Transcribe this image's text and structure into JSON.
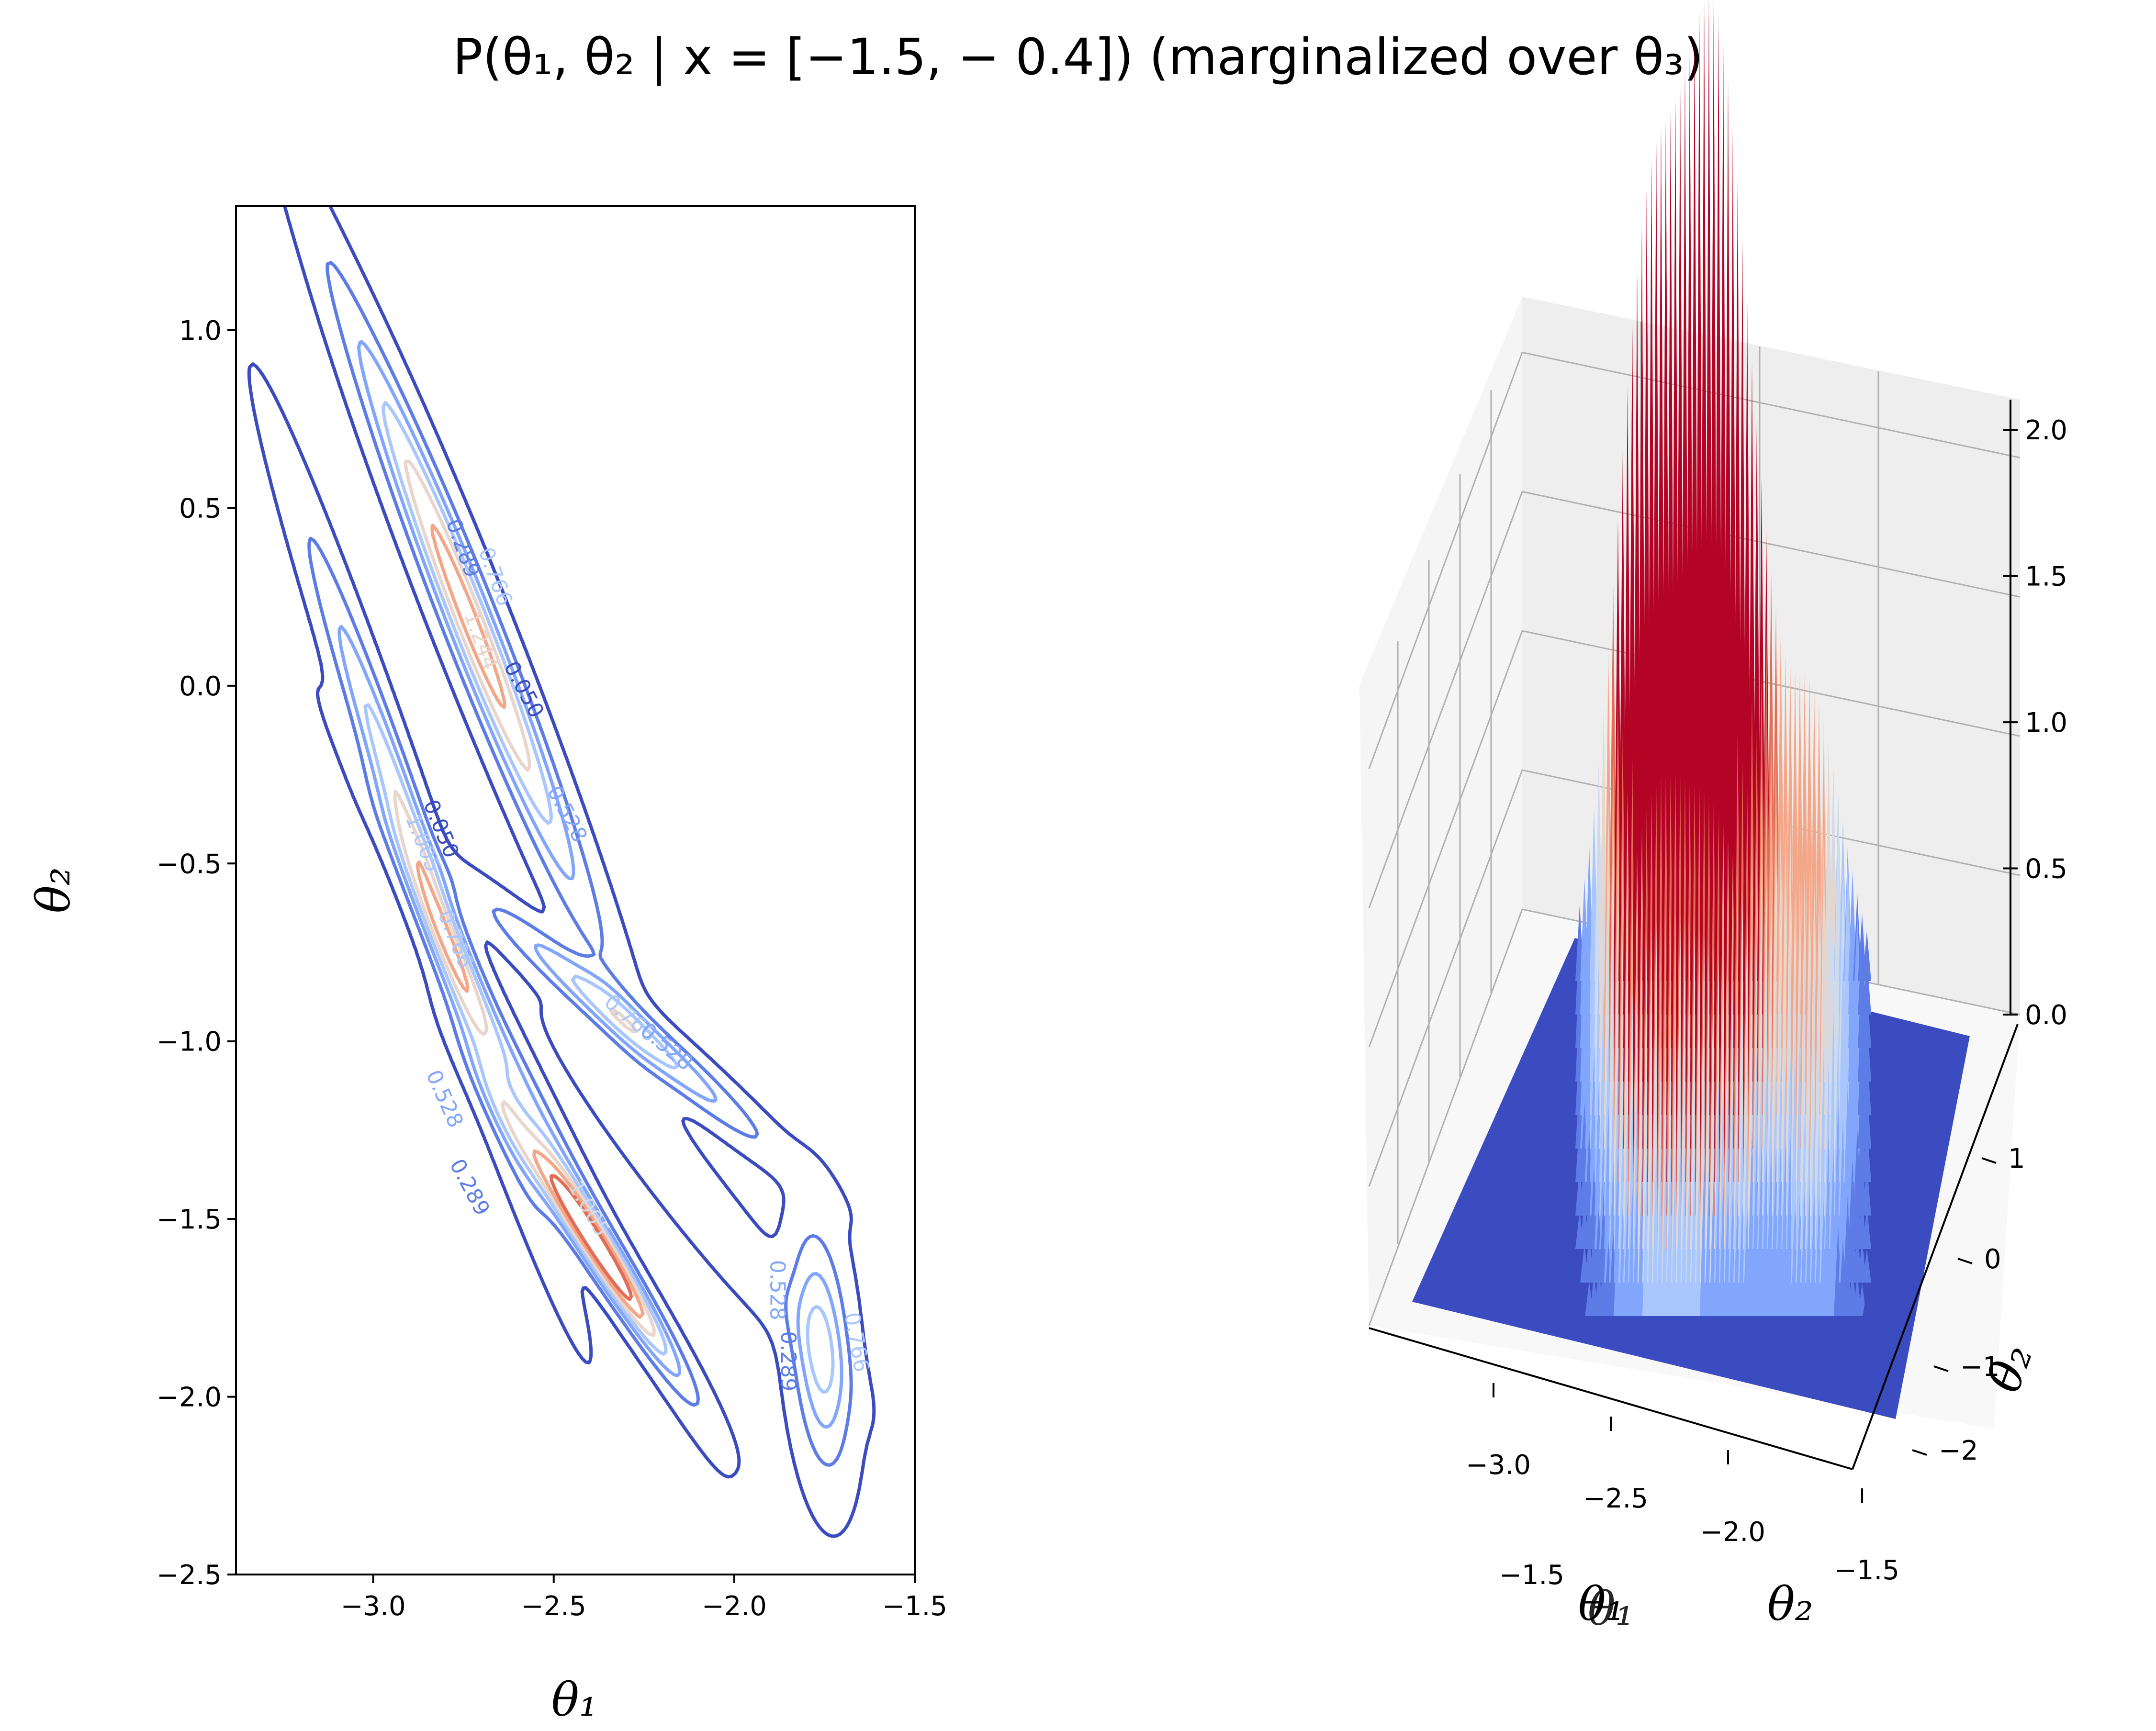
{
  "title": "P(θ₁, θ₂ | x = [−1.5, − 0.4]) (marginalized over θ₃)",
  "colors": {
    "c1": "#3b4cc0",
    "c2": "#5d7ce6",
    "c3": "#82a6fb",
    "c4": "#aac7fd",
    "c5": "#cfdaea",
    "c6": "#e8d6cc",
    "c7": "#f4a688",
    "c8": "#e36c55",
    "c9": "#b40426",
    "pane": "#f2f2f2",
    "grid": "#b0b0b0"
  },
  "chart_data": [
    {
      "type": "contour",
      "xlabel": "θ₁",
      "ylabel": "θ₂",
      "xlim": [
        -3.38,
        -1.5
      ],
      "ylim": [
        -2.5,
        1.35
      ],
      "xticks": [
        "−3.0",
        "−2.5",
        "−2.0",
        "−1.5"
      ],
      "xtick_values": [
        -3.0,
        -2.5,
        -2.0,
        -1.5
      ],
      "yticks": [
        "−2.5",
        "−2.0",
        "−1.5",
        "−1.0",
        "−0.5",
        "0.0",
        "0.5",
        "1.0"
      ],
      "ytick_values": [
        -2.5,
        -2.0,
        -1.5,
        -1.0,
        -0.5,
        0.0,
        0.5,
        1.0
      ],
      "contour_levels": [
        "0.050",
        "0.289",
        "0.528",
        "0.766",
        "1.005",
        "1.244"
      ],
      "contour_label_items": [
        {
          "text": "0.050",
          "x": -2.6,
          "y": -0.02,
          "color": "c1",
          "rot": 62
        },
        {
          "text": "0.528",
          "x": -2.48,
          "y": -0.37,
          "color": "c3",
          "rot": 62
        },
        {
          "text": "0.050",
          "x": -2.83,
          "y": -0.41,
          "color": "c1",
          "rot": 68
        },
        {
          "text": "0.766",
          "x": -2.79,
          "y": -0.72,
          "color": "c4",
          "rot": 68
        },
        {
          "text": "1.005",
          "x": -2.88,
          "y": -0.45,
          "color": "c4",
          "rot": 68
        },
        {
          "text": "0.289",
          "x": -2.77,
          "y": 0.38,
          "color": "c2",
          "rot": 70
        },
        {
          "text": "1.244",
          "x": -2.72,
          "y": 0.12,
          "color": "c6",
          "rot": 70
        },
        {
          "text": "0.766",
          "x": -2.68,
          "y": 0.3,
          "color": "c4",
          "rot": 70
        },
        {
          "text": "0.528",
          "x": -2.82,
          "y": -1.17,
          "color": "c3",
          "rot": 66
        },
        {
          "text": "0.289",
          "x": -2.75,
          "y": -1.42,
          "color": "c2",
          "rot": 62
        },
        {
          "text": "0.766",
          "x": -2.3,
          "y": -0.95,
          "color": "c4",
          "rot": 40
        },
        {
          "text": "0.528",
          "x": -2.2,
          "y": -1.03,
          "color": "c3",
          "rot": 40
        },
        {
          "text": "1.005",
          "x": -2.42,
          "y": -1.48,
          "color": "c5",
          "rot": 60
        },
        {
          "text": "0.528",
          "x": -1.9,
          "y": -1.7,
          "color": "c3",
          "rot": 90
        },
        {
          "text": "0.289",
          "x": -1.87,
          "y": -1.9,
          "color": "c2",
          "rot": 90
        },
        {
          "text": "0.766",
          "x": -1.68,
          "y": -1.85,
          "color": "c4",
          "rot": 80
        }
      ]
    },
    {
      "type": "surface3d",
      "xlabel": "θ₁",
      "ylabel": "θ₂",
      "x_axis_overlap_label": "−1.5",
      "xticks": [
        "−3.0",
        "−2.5",
        "−2.0",
        "−1.5"
      ],
      "xtick_values": [
        -3.0,
        -2.5,
        -2.0,
        -1.5
      ],
      "yticks": [
        "−2",
        "−1",
        "0",
        "1"
      ],
      "ytick_values": [
        -2,
        -1,
        0,
        1
      ],
      "zticks": [
        "0.0",
        "0.5",
        "1.0",
        "1.5",
        "2.0"
      ],
      "ztick_values": [
        0.0,
        0.5,
        1.0,
        1.5,
        2.0
      ],
      "zlim": [
        0.0,
        2.2
      ],
      "colormap": "coolwarm",
      "peaks": [
        {
          "theta1": -2.75,
          "theta2": 0.2,
          "z": 1.35
        },
        {
          "theta1": -2.45,
          "theta2": -1.55,
          "z": 1.7
        },
        {
          "theta1": -2.85,
          "theta2": -0.4,
          "z": 1.0
        },
        {
          "theta1": -2.3,
          "theta2": -0.95,
          "z": 1.1
        },
        {
          "theta1": -1.75,
          "theta2": -1.85,
          "z": 0.8
        }
      ]
    }
  ]
}
